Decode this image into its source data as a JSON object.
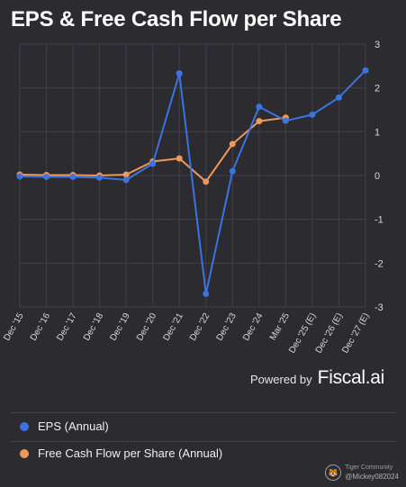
{
  "title": "EPS & Free Cash Flow per Share",
  "powered_by": {
    "label": "Powered by",
    "brand": "Fiscal.ai"
  },
  "legend": [
    {
      "label": "EPS (Annual)",
      "color": "#3b74e0"
    },
    {
      "label": "Free Cash Flow per Share (Annual)",
      "color": "#f0985a"
    }
  ],
  "watermark": {
    "line1": "Tiger Community",
    "line2": "@Mickey082024"
  },
  "chart_data": {
    "type": "line",
    "categories": [
      "Dec '15",
      "Dec '16",
      "Dec '17",
      "Dec '18",
      "Dec '19",
      "Dec '20",
      "Dec '21",
      "Dec '22",
      "Dec '23",
      "Dec '24",
      "Mar '25",
      "Dec '25 (E)",
      "Dec '26 (E)",
      "Dec '27 (E)"
    ],
    "y_ticks": [
      3,
      2,
      1,
      0,
      -1,
      -2,
      -3
    ],
    "ylim": [
      -3,
      3
    ],
    "grid": true,
    "y_axis_side": "right",
    "series": [
      {
        "name": "EPS (Annual)",
        "color": "#3b74e0",
        "values": [
          -0.02,
          -0.03,
          -0.03,
          -0.05,
          -0.1,
          0.27,
          2.33,
          -2.7,
          0.1,
          1.57,
          1.25,
          1.39,
          1.78,
          2.4
        ]
      },
      {
        "name": "Free Cash Flow per Share (Annual)",
        "color": "#f0985a",
        "values": [
          0.02,
          0.01,
          0.01,
          0.0,
          0.02,
          0.32,
          0.39,
          -0.14,
          0.72,
          1.24,
          1.32,
          null,
          null,
          null
        ]
      }
    ]
  }
}
